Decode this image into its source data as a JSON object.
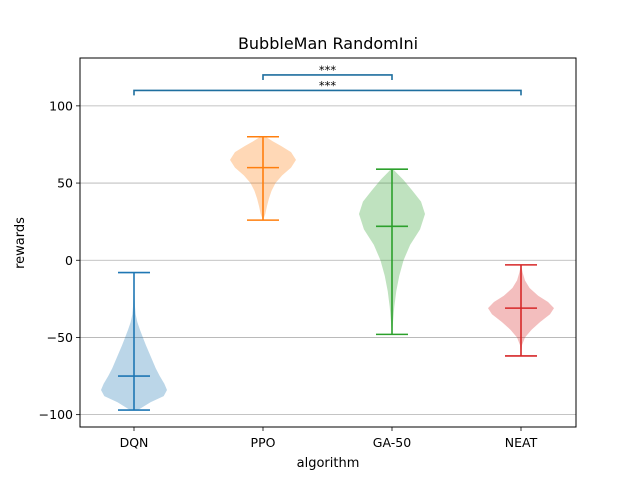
{
  "chart_data": {
    "type": "violin",
    "title": "BubbleMan RandomIni",
    "xlabel": "algorithm",
    "ylabel": "rewards",
    "ylim": [
      -108,
      131
    ],
    "yticks": [
      -100,
      -50,
      0,
      50,
      100
    ],
    "y_tick_labels": [
      "−100",
      "−50",
      "0",
      "50",
      "100"
    ],
    "grid": "y",
    "categories": [
      "DQN",
      "PPO",
      "GA-50",
      "NEAT"
    ],
    "series": [
      {
        "category": "DQN",
        "color": "#1f77b4",
        "min": -97,
        "max": -8,
        "median": -75,
        "density": [
          [
            -97,
            0.12
          ],
          [
            -92,
            0.5
          ],
          [
            -88,
            0.9
          ],
          [
            -84,
            1.0
          ],
          [
            -80,
            0.92
          ],
          [
            -75,
            0.78
          ],
          [
            -70,
            0.66
          ],
          [
            -65,
            0.56
          ],
          [
            -60,
            0.46
          ],
          [
            -55,
            0.36
          ],
          [
            -50,
            0.27
          ],
          [
            -45,
            0.18
          ],
          [
            -40,
            0.1
          ],
          [
            -35,
            0.05
          ],
          [
            -30,
            0.03
          ],
          [
            -25,
            0.02
          ],
          [
            -18,
            0.01
          ],
          [
            -12,
            0.005
          ],
          [
            -8,
            0.0
          ]
        ]
      },
      {
        "category": "PPO",
        "color": "#ff7f0e",
        "min": 26,
        "max": 80,
        "median": 60,
        "density": [
          [
            26,
            0.0
          ],
          [
            30,
            0.07
          ],
          [
            35,
            0.12
          ],
          [
            40,
            0.18
          ],
          [
            45,
            0.26
          ],
          [
            50,
            0.38
          ],
          [
            55,
            0.58
          ],
          [
            60,
            0.85
          ],
          [
            65,
            1.0
          ],
          [
            70,
            0.85
          ],
          [
            74,
            0.55
          ],
          [
            77,
            0.3
          ],
          [
            80,
            0.08
          ]
        ]
      },
      {
        "category": "GA-50",
        "color": "#2ca02c",
        "min": -48,
        "max": 59,
        "median": 22,
        "density": [
          [
            -48,
            0.0
          ],
          [
            -40,
            0.03
          ],
          [
            -30,
            0.07
          ],
          [
            -20,
            0.13
          ],
          [
            -10,
            0.22
          ],
          [
            0,
            0.35
          ],
          [
            10,
            0.55
          ],
          [
            20,
            0.85
          ],
          [
            30,
            1.0
          ],
          [
            38,
            0.88
          ],
          [
            45,
            0.62
          ],
          [
            52,
            0.35
          ],
          [
            57,
            0.12
          ],
          [
            59,
            0.03
          ]
        ]
      },
      {
        "category": "NEAT",
        "color": "#d62728",
        "min": -62,
        "max": -3,
        "median": -31,
        "density": [
          [
            -62,
            0.0
          ],
          [
            -55,
            0.03
          ],
          [
            -50,
            0.12
          ],
          [
            -45,
            0.32
          ],
          [
            -40,
            0.58
          ],
          [
            -35,
            0.88
          ],
          [
            -31,
            1.0
          ],
          [
            -27,
            0.82
          ],
          [
            -23,
            0.52
          ],
          [
            -18,
            0.26
          ],
          [
            -13,
            0.12
          ],
          [
            -8,
            0.05
          ],
          [
            -3,
            0.0
          ]
        ]
      }
    ],
    "significance": [
      {
        "from": "PPO",
        "to": "GA-50",
        "y": 120,
        "label": "***"
      },
      {
        "from": "DQN",
        "to": "NEAT",
        "y": 110,
        "label": "***"
      }
    ],
    "bracket_color": "#1f6f9f"
  }
}
